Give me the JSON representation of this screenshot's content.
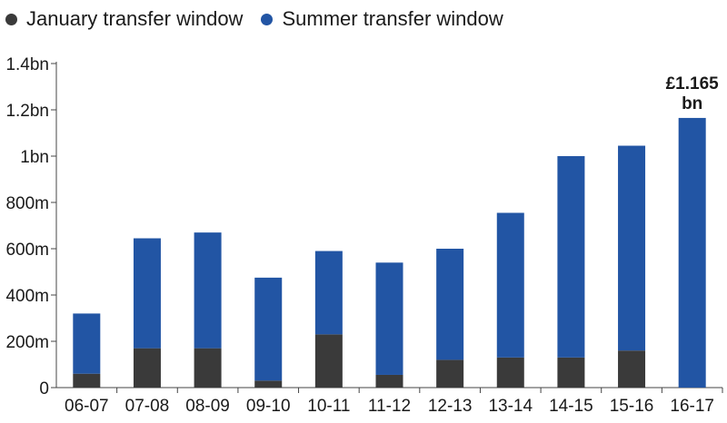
{
  "colors": {
    "january": "#3a3a3a",
    "summer": "#2255a4",
    "axis": "#444444"
  },
  "chart_data": {
    "type": "bar",
    "stacked": true,
    "categories": [
      "06-07",
      "07-08",
      "08-09",
      "09-10",
      "10-11",
      "11-12",
      "12-13",
      "13-14",
      "14-15",
      "15-16",
      "16-17"
    ],
    "series": [
      {
        "name": "January transfer window",
        "values": [
          60,
          170,
          170,
          30,
          230,
          55,
          120,
          130,
          130,
          160,
          0
        ]
      },
      {
        "name": "Summer transfer window",
        "values": [
          260,
          475,
          500,
          445,
          360,
          485,
          480,
          625,
          870,
          885,
          1165
        ]
      }
    ],
    "ylim": [
      0,
      1400
    ],
    "yticks": [
      0,
      200,
      400,
      600,
      800,
      1000,
      1200,
      1400
    ],
    "ytick_labels": [
      "0",
      "200m",
      "400m",
      "600m",
      "800m",
      "1bn",
      "1.2bn",
      "1.4bn"
    ],
    "annotation": {
      "category": "16-17",
      "lines": [
        "£1.165",
        "bn"
      ]
    },
    "legend": "top-left",
    "grid": false
  }
}
